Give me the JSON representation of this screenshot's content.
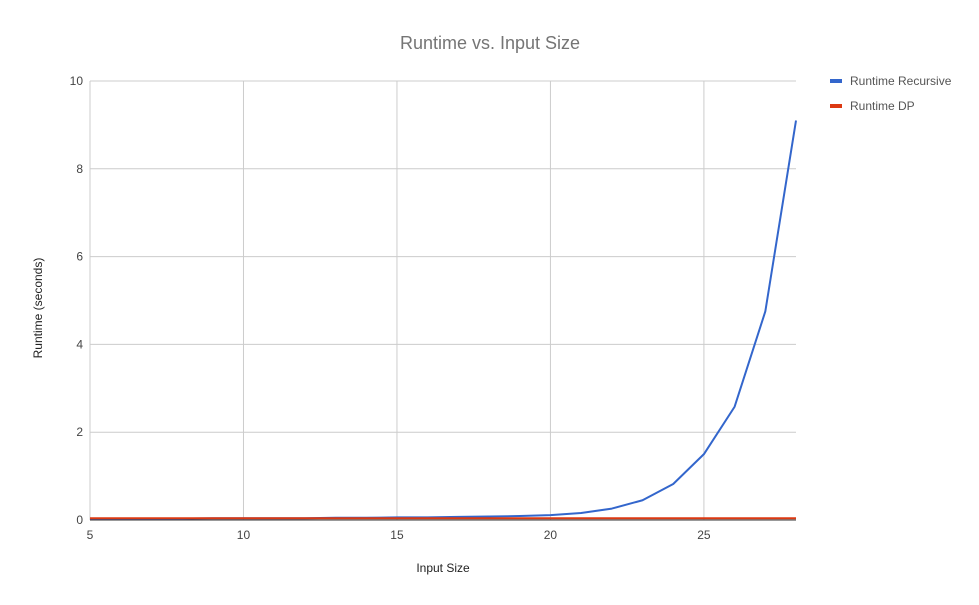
{
  "chart_data": {
    "type": "line",
    "title": "Runtime vs. Input Size",
    "xlabel": "Input Size",
    "ylabel": "Runtime (seconds)",
    "xlim": [
      5,
      28
    ],
    "ylim": [
      0,
      10
    ],
    "x_ticks": [
      5,
      10,
      15,
      20,
      25
    ],
    "y_ticks": [
      0,
      2,
      4,
      6,
      8,
      10
    ],
    "grid": true,
    "legend_position": "right",
    "x": [
      5,
      6,
      7,
      8,
      9,
      10,
      11,
      12,
      13,
      14,
      15,
      16,
      17,
      18,
      19,
      20,
      21,
      22,
      23,
      24,
      25,
      26,
      27,
      28
    ],
    "series": [
      {
        "name": "Runtime Recursive",
        "color": "#3366cc",
        "values": [
          0.03,
          0.03,
          0.03,
          0.03,
          0.04,
          0.04,
          0.04,
          0.04,
          0.05,
          0.05,
          0.06,
          0.06,
          0.07,
          0.08,
          0.09,
          0.11,
          0.16,
          0.26,
          0.45,
          0.82,
          1.5,
          2.58,
          4.75,
          9.1
        ]
      },
      {
        "name": "Runtime DP",
        "color": "#dc3912",
        "values": [
          0.04,
          0.04,
          0.04,
          0.04,
          0.04,
          0.04,
          0.04,
          0.04,
          0.04,
          0.04,
          0.04,
          0.04,
          0.04,
          0.04,
          0.04,
          0.04,
          0.04,
          0.04,
          0.04,
          0.04,
          0.04,
          0.04,
          0.04,
          0.04
        ]
      }
    ]
  }
}
